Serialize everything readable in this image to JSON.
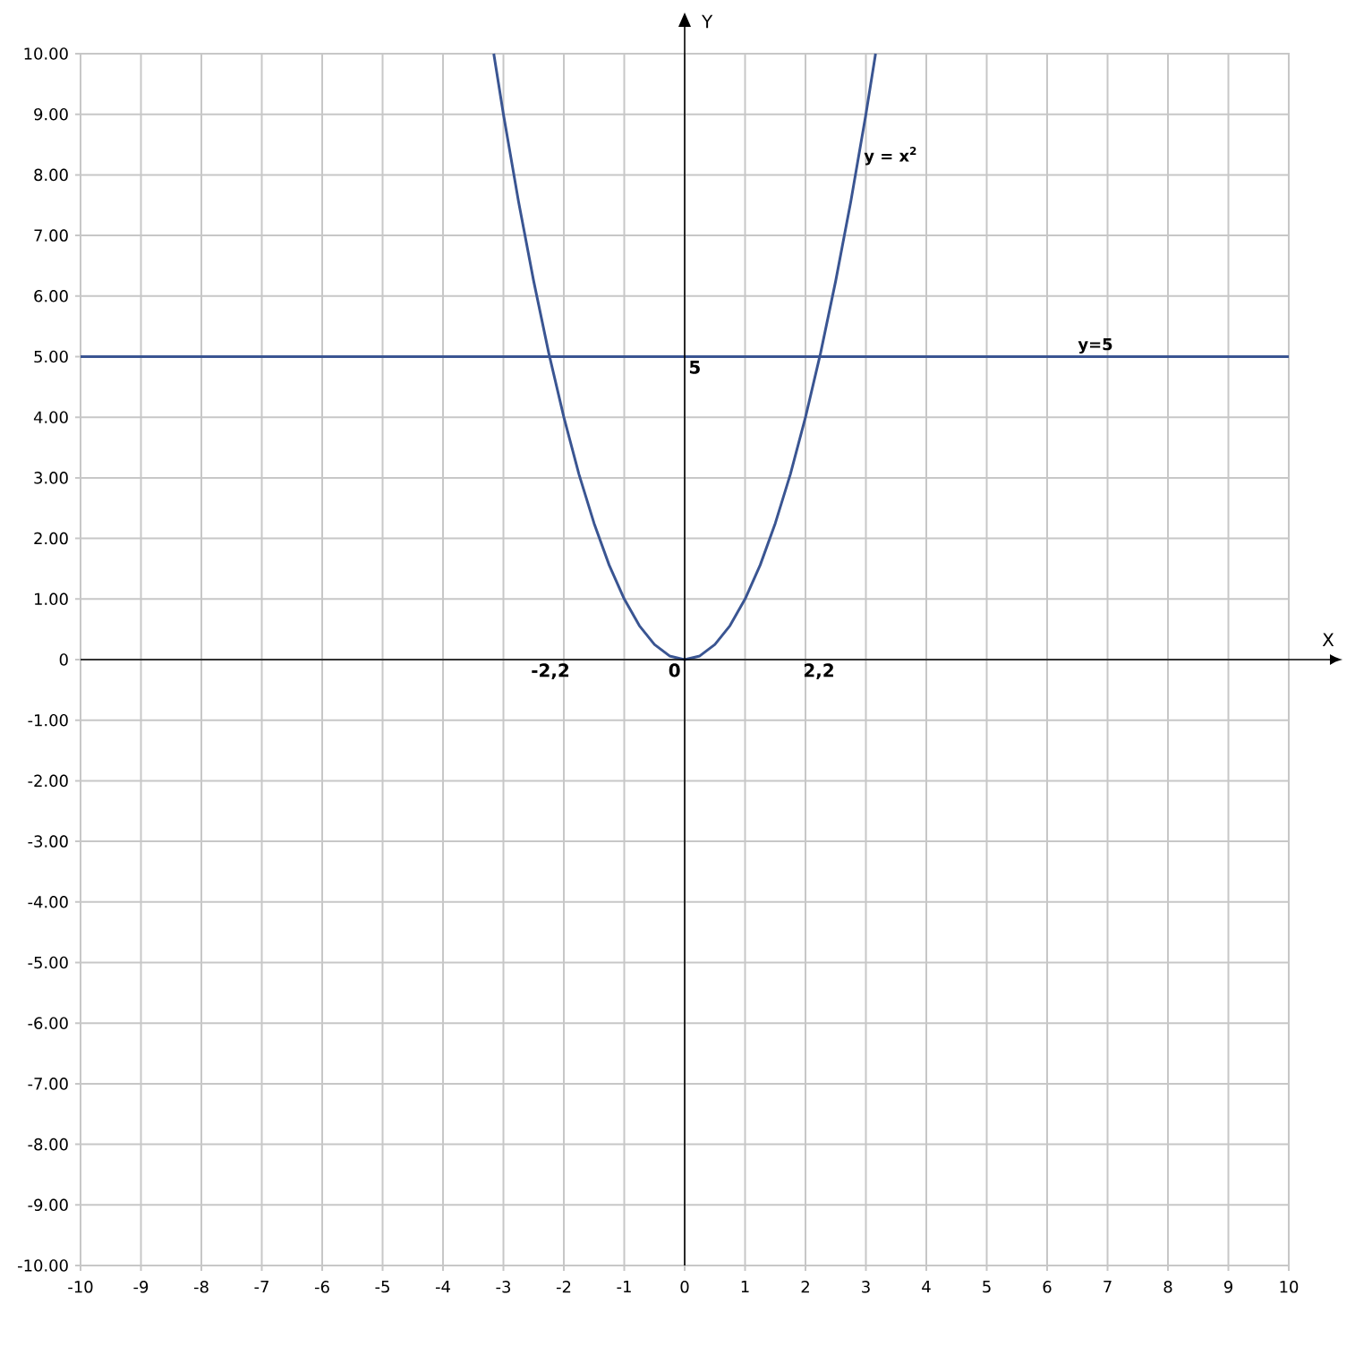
{
  "chart_data": {
    "type": "line",
    "xlabel": "X",
    "ylabel": "Y",
    "xlim": [
      -10,
      10
    ],
    "ylim": [
      -10,
      10
    ],
    "xticks": [
      -10,
      -9,
      -8,
      -7,
      -6,
      -5,
      -4,
      -3,
      -2,
      -1,
      0,
      1,
      2,
      3,
      4,
      5,
      6,
      7,
      8,
      9,
      10
    ],
    "yticks": [
      {
        "value": -10,
        "label": "-10.00"
      },
      {
        "value": -9,
        "label": "-9.00"
      },
      {
        "value": -8,
        "label": "-8.00"
      },
      {
        "value": -7,
        "label": "-7.00"
      },
      {
        "value": -6,
        "label": "-6.00"
      },
      {
        "value": -5,
        "label": "-5.00"
      },
      {
        "value": -4,
        "label": "-4.00"
      },
      {
        "value": -3,
        "label": "-3.00"
      },
      {
        "value": -2,
        "label": "-2.00"
      },
      {
        "value": -1,
        "label": "-1.00"
      },
      {
        "value": 0,
        "label": "0"
      },
      {
        "value": 1,
        "label": "1.00"
      },
      {
        "value": 2,
        "label": "2.00"
      },
      {
        "value": 3,
        "label": "3.00"
      },
      {
        "value": 4,
        "label": "4.00"
      },
      {
        "value": 5,
        "label": "5.00"
      },
      {
        "value": 6,
        "label": "6.00"
      },
      {
        "value": 7,
        "label": "7.00"
      },
      {
        "value": 8,
        "label": "8.00"
      },
      {
        "value": 9,
        "label": "9.00"
      },
      {
        "value": 10,
        "label": "10.00"
      }
    ],
    "grid": true,
    "legend": false,
    "line_style": "solid",
    "series": [
      {
        "name": "y = x$^{2}$",
        "color": "#3a5592",
        "x": [
          -3.16,
          -3,
          -2.75,
          -2.5,
          -2.25,
          -2,
          -1.75,
          -1.5,
          -1.25,
          -1,
          -0.75,
          -0.5,
          -0.25,
          0,
          0.25,
          0.5,
          0.75,
          1,
          1.25,
          1.5,
          1.75,
          2,
          2.25,
          2.5,
          2.75,
          3,
          3.16
        ],
        "values": [
          10,
          9,
          7.56,
          6.25,
          5.06,
          4,
          3.06,
          2.25,
          1.56,
          1,
          0.56,
          0.25,
          0.06,
          0,
          0.06,
          0.25,
          0.56,
          1,
          1.56,
          2.25,
          3.06,
          4,
          5.06,
          6.25,
          7.56,
          9,
          10
        ]
      },
      {
        "name": "y=5",
        "color": "#3a5592",
        "x": [
          -10,
          10
        ],
        "values": [
          5,
          5
        ]
      }
    ],
    "annotations": [
      {
        "text": "5",
        "x": 0,
        "y": 5
      },
      "-2,2",
      {
        "text": "0",
        "x": 0,
        "y": 0
      },
      "2,2"
    ]
  }
}
